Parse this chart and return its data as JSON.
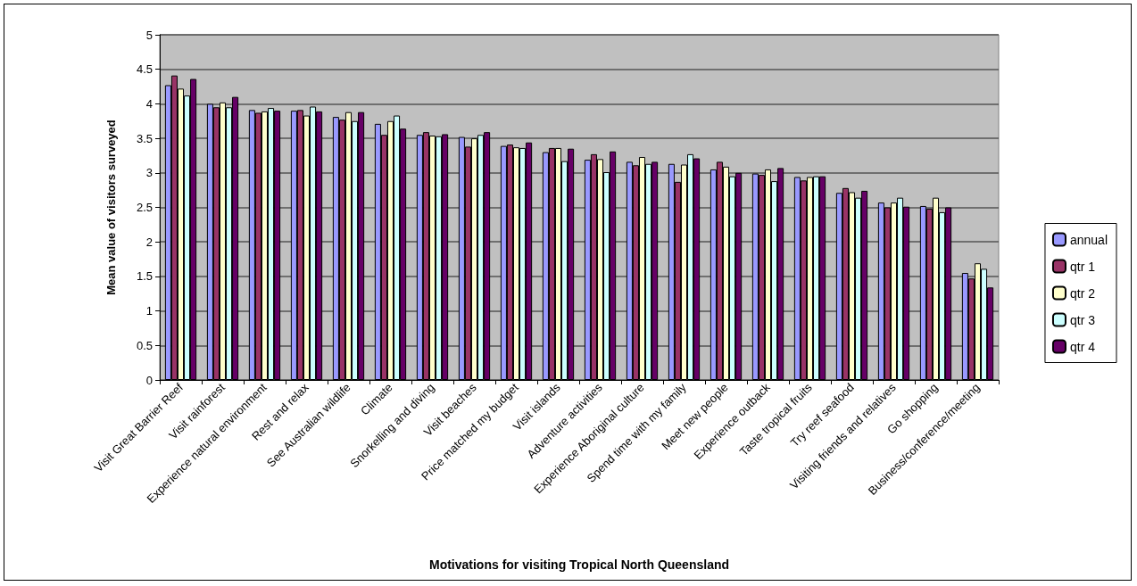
{
  "chart_data": {
    "type": "bar",
    "xlabel": "Motivations for visiting Tropical North Queensland",
    "ylabel": "Mean value of visitors surveyed",
    "categories": [
      "Visit Great Barrier Reef",
      "Visit rainforest",
      "Experience natural environment",
      "Rest and relax",
      "See Australian wildlife",
      "Climate",
      "Snorkelling and diving",
      "Visit beaches",
      "Price matched my budget",
      "Visit islands",
      "Adventure activities",
      "Experience Aboriginal culture",
      "Spend time with my family",
      "Meet new people",
      "Experience outback",
      "Taste tropical fruits",
      "Try reef seafood",
      "Visiting friends and relatives",
      "Go shopping",
      "Business/conference/meeting"
    ],
    "series": [
      {
        "name": "annual",
        "color": "#9999ff",
        "values": [
          4.27,
          4.0,
          3.91,
          3.9,
          3.81,
          3.71,
          3.55,
          3.52,
          3.39,
          3.3,
          3.19,
          3.16,
          3.13,
          3.05,
          2.99,
          2.94,
          2.71,
          2.57,
          2.52,
          1.55
        ]
      },
      {
        "name": "qtr 1",
        "color": "#993366",
        "values": [
          4.41,
          3.95,
          3.87,
          3.91,
          3.77,
          3.55,
          3.59,
          3.38,
          3.41,
          3.36,
          3.27,
          3.11,
          2.87,
          3.16,
          2.97,
          2.89,
          2.78,
          2.5,
          2.48,
          1.47
        ]
      },
      {
        "name": "qtr 2",
        "color": "#ffffcc",
        "values": [
          4.22,
          4.02,
          3.89,
          3.83,
          3.88,
          3.75,
          3.54,
          3.5,
          3.37,
          3.36,
          3.2,
          3.23,
          3.12,
          3.09,
          3.05,
          2.94,
          2.72,
          2.57,
          2.64,
          1.69
        ]
      },
      {
        "name": "qtr 3",
        "color": "#ccffff",
        "values": [
          4.12,
          3.95,
          3.94,
          3.96,
          3.75,
          3.83,
          3.53,
          3.55,
          3.36,
          3.17,
          3.01,
          3.13,
          3.27,
          2.95,
          2.88,
          2.95,
          2.64,
          2.64,
          2.43,
          1.61
        ]
      },
      {
        "name": "qtr 4",
        "color": "#660066",
        "values": [
          4.36,
          4.1,
          3.9,
          3.89,
          3.88,
          3.64,
          3.56,
          3.59,
          3.44,
          3.35,
          3.31,
          3.16,
          3.21,
          3.0,
          3.07,
          2.95,
          2.74,
          2.51,
          2.5,
          1.34
        ]
      }
    ],
    "ylim": [
      0,
      5
    ],
    "yticks": [
      0,
      0.5,
      1,
      1.5,
      2,
      2.5,
      3,
      3.5,
      4,
      4.5,
      5
    ],
    "grid": "y",
    "legend": "right"
  }
}
